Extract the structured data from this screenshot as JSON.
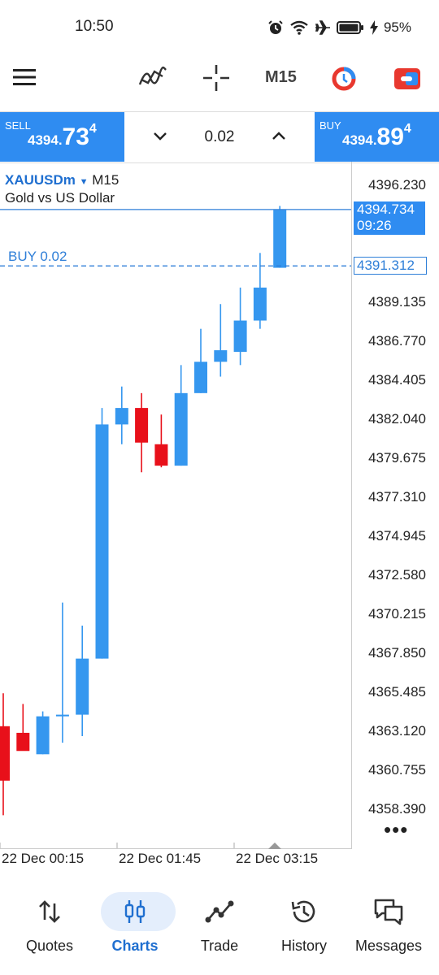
{
  "status_bar": {
    "time": "10:50",
    "battery": "95%"
  },
  "toolbar": {
    "timeframe": "M15"
  },
  "trade_bar": {
    "sell": {
      "label": "SELL",
      "price_small": "4394.",
      "price_big": "73",
      "price_sup": "4"
    },
    "buy": {
      "label": "BUY",
      "price_small": "4394.",
      "price_big": "89",
      "price_sup": "4"
    },
    "lot": "0.02"
  },
  "chart": {
    "symbol": "XAUUSDm",
    "timeframe": "M15",
    "description": "Gold vs US Dollar",
    "buy_line_label": "BUY 0.02",
    "bid_price": "4394.734",
    "bid_timer": "09:26",
    "buy_price": "4391.312",
    "price_axis": [
      "4396.230",
      "4389.135",
      "4386.770",
      "4384.405",
      "4382.040",
      "4379.675",
      "4377.310",
      "4374.945",
      "4372.580",
      "4370.215",
      "4367.850",
      "4365.485",
      "4363.120",
      "4360.755",
      "4358.390"
    ],
    "time_axis": [
      "22 Dec 00:15",
      "22 Dec 01:45",
      "22 Dec 03:15"
    ],
    "colors": {
      "bull": "#3597ef",
      "bear": "#e8101a",
      "line": "#2f7fd8"
    }
  },
  "chart_data": {
    "type": "candlestick",
    "title": "XAUUSDm M15",
    "subtitle": "Gold vs US Dollar",
    "series": [
      {
        "o": 4363.4,
        "h": 4365.4,
        "l": 4358.0,
        "c": 4360.1
      },
      {
        "o": 4363.0,
        "h": 4364.75,
        "l": 4362.0,
        "c": 4361.9
      },
      {
        "o": 4361.7,
        "h": 4364.3,
        "l": 4361.7,
        "c": 4364.0
      },
      {
        "o": 4364.0,
        "h": 4370.9,
        "l": 4362.4,
        "c": 4364.1
      },
      {
        "o": 4364.1,
        "h": 4369.5,
        "l": 4362.8,
        "c": 4367.5
      },
      {
        "o": 4367.5,
        "h": 4382.7,
        "l": 4367.5,
        "c": 4381.7
      },
      {
        "o": 4381.7,
        "h": 4384.0,
        "l": 4380.5,
        "c": 4382.7
      },
      {
        "o": 4382.7,
        "h": 4383.6,
        "l": 4378.8,
        "c": 4380.6
      },
      {
        "o": 4380.5,
        "h": 4382.3,
        "l": 4379.1,
        "c": 4379.2
      },
      {
        "o": 4379.2,
        "h": 4385.3,
        "l": 4379.2,
        "c": 4383.6
      },
      {
        "o": 4383.6,
        "h": 4387.5,
        "l": 4383.6,
        "c": 4385.5
      },
      {
        "o": 4385.5,
        "h": 4389.0,
        "l": 4384.6,
        "c": 4386.2
      },
      {
        "o": 4386.1,
        "h": 4390.0,
        "l": 4385.3,
        "c": 4388.0
      },
      {
        "o": 4388.0,
        "h": 4392.1,
        "l": 4387.5,
        "c": 4390.0
      },
      {
        "o": 4391.2,
        "h": 4394.95,
        "l": 4391.2,
        "c": 4394.7
      }
    ],
    "ylim": [
      4357.2,
      4397.8
    ],
    "y_ticks": [
      4396.23,
      4389.135,
      4386.77,
      4384.405,
      4382.04,
      4379.675,
      4377.31,
      4374.945,
      4372.58,
      4370.215,
      4367.85,
      4365.485,
      4363.12,
      4360.755,
      4358.39
    ],
    "x_ticks": [
      "22 Dec 00:15",
      "22 Dec 01:45",
      "22 Dec 03:15"
    ],
    "horizontal_lines": [
      {
        "label": "4394.734",
        "value": 4394.734,
        "style": "solid"
      },
      {
        "label": "BUY 0.02",
        "value": 4391.312,
        "style": "dashed"
      }
    ],
    "grid": false
  },
  "nav": {
    "items": [
      {
        "label": "Quotes"
      },
      {
        "label": "Charts"
      },
      {
        "label": "Trade"
      },
      {
        "label": "History"
      },
      {
        "label": "Messages"
      }
    ]
  }
}
